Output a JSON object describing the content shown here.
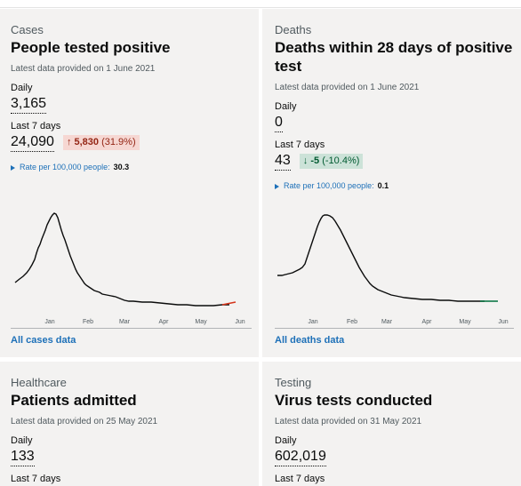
{
  "cards": [
    {
      "caption": "Cases",
      "title": "People tested positive",
      "updated": "Latest data provided on 1 June 2021",
      "daily_label": "Daily",
      "daily_value": "3,165",
      "week_label": "Last 7 days",
      "week_value": "24,090",
      "change_arrow": "↑",
      "change_value": "5,830",
      "change_pct": "(31.9%)",
      "change_color": "#f6d7d2",
      "rate_label": "Rate per 100,000 people:",
      "rate_value": "30.3",
      "link": "All cases data",
      "months": [
        "Jan",
        "Feb",
        "Mar",
        "Apr",
        "May",
        "Jun"
      ]
    },
    {
      "caption": "Deaths",
      "title": "Deaths within 28 days of positive test",
      "updated": "Latest data provided on 1 June 2021",
      "daily_label": "Daily",
      "daily_value": "0",
      "week_label": "Last 7 days",
      "week_value": "43",
      "change_arrow": "↓",
      "change_value": "-5",
      "change_pct": "(-10.4%)",
      "change_color": "#cce2d8",
      "rate_label": "Rate per 100,000 people:",
      "rate_value": "0.1",
      "link": "All deaths data",
      "months": [
        "Jan",
        "Feb",
        "Mar",
        "Apr",
        "May",
        "Jun"
      ]
    },
    {
      "caption": "Healthcare",
      "title": "Patients admitted",
      "updated": "Latest data provided on 25 May 2021",
      "daily_label": "Daily",
      "daily_value": "133",
      "week_label": "Last 7 days"
    },
    {
      "caption": "Testing",
      "title": "Virus tests conducted",
      "updated": "Latest data provided on 31 May 2021",
      "daily_label": "Daily",
      "daily_value": "602,019",
      "week_label": "Last 7 days"
    }
  ],
  "colors": {
    "link": "#1d70b8",
    "card_bg": "#f3f2f1",
    "increase_bg": "#f6d7d2",
    "increase_text": "#942514",
    "decrease_bg": "#cce2d8",
    "decrease_text": "#005a30",
    "cases_trend_end": "#d4351c",
    "deaths_trend_end": "#00703c"
  }
}
